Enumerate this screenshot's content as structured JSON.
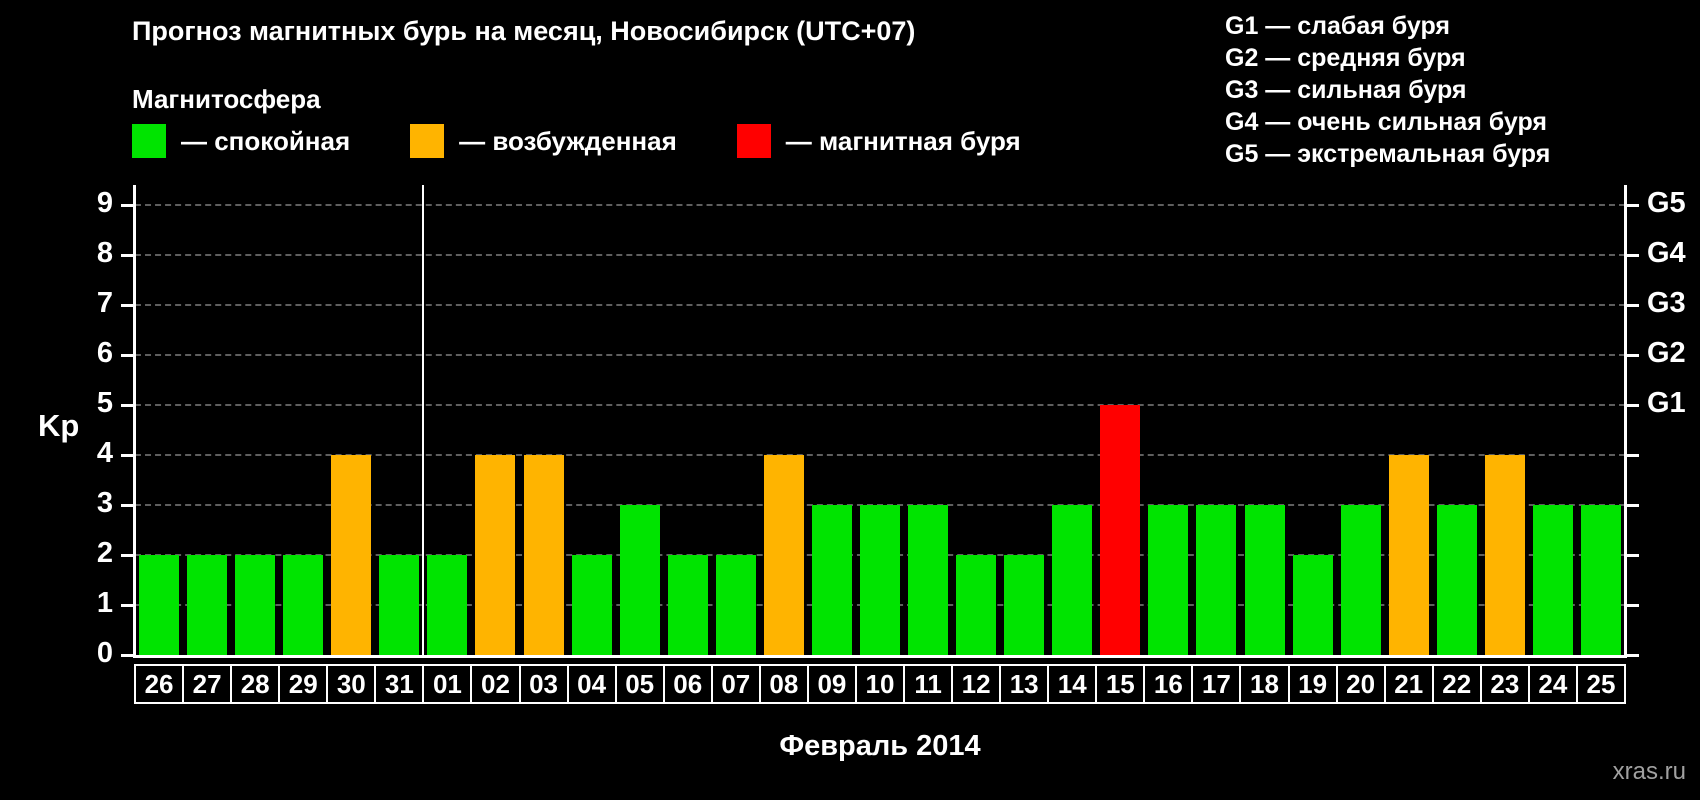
{
  "title": "Прогноз магнитных бурь на месяц, Новосибирск (UTC+07)",
  "legend_title": "Магнитосфера",
  "legend": [
    {
      "name": "quiet",
      "label": "— спокойная",
      "color": "#00e400"
    },
    {
      "name": "excited",
      "label": "— возбужденная",
      "color": "#ffb400"
    },
    {
      "name": "storm",
      "label": "— магнитная буря",
      "color": "#ff0000"
    }
  ],
  "g_legend": [
    "G1 — слабая буря",
    "G2 — средняя буря",
    "G3 — сильная буря",
    "G4 — очень сильная буря",
    "G5 — экстремальная буря"
  ],
  "ylabel": "Kp",
  "xlabel": "Февраль 2014",
  "watermark": "xras.ru",
  "chart_data": {
    "type": "bar",
    "title": "Прогноз магнитных бурь на месяц, Новосибирск (UTC+07)",
    "categories": [
      "26",
      "27",
      "28",
      "29",
      "30",
      "31",
      "01",
      "02",
      "03",
      "04",
      "05",
      "06",
      "07",
      "08",
      "09",
      "10",
      "11",
      "12",
      "13",
      "14",
      "15",
      "16",
      "17",
      "18",
      "19",
      "20",
      "21",
      "22",
      "23",
      "24",
      "25"
    ],
    "values": [
      2,
      2,
      2,
      2,
      4,
      2,
      2,
      4,
      4,
      2,
      3,
      2,
      2,
      4,
      3,
      3,
      3,
      2,
      2,
      3,
      5,
      3,
      3,
      3,
      2,
      3,
      4,
      3,
      4,
      3,
      3
    ],
    "ylim": [
      0,
      9
    ],
    "yticks": [
      0,
      1,
      2,
      3,
      4,
      5,
      6,
      7,
      8,
      9
    ],
    "grid": true,
    "colors_by_state": {
      "quiet": "#00e400",
      "excited": "#ffb400",
      "storm": "#ff0000"
    },
    "state_rule": {
      "quiet_max": 3,
      "excited_value": 4,
      "storm_min": 5
    },
    "right_axis_labels": [
      {
        "label": "G1",
        "value": 5
      },
      {
        "label": "G2",
        "value": 6
      },
      {
        "label": "G3",
        "value": 7
      },
      {
        "label": "G4",
        "value": 8
      },
      {
        "label": "G5",
        "value": 9
      }
    ],
    "month_boundary_after_index": 5,
    "xlabel": "Февраль 2014",
    "ylabel": "Kp"
  }
}
